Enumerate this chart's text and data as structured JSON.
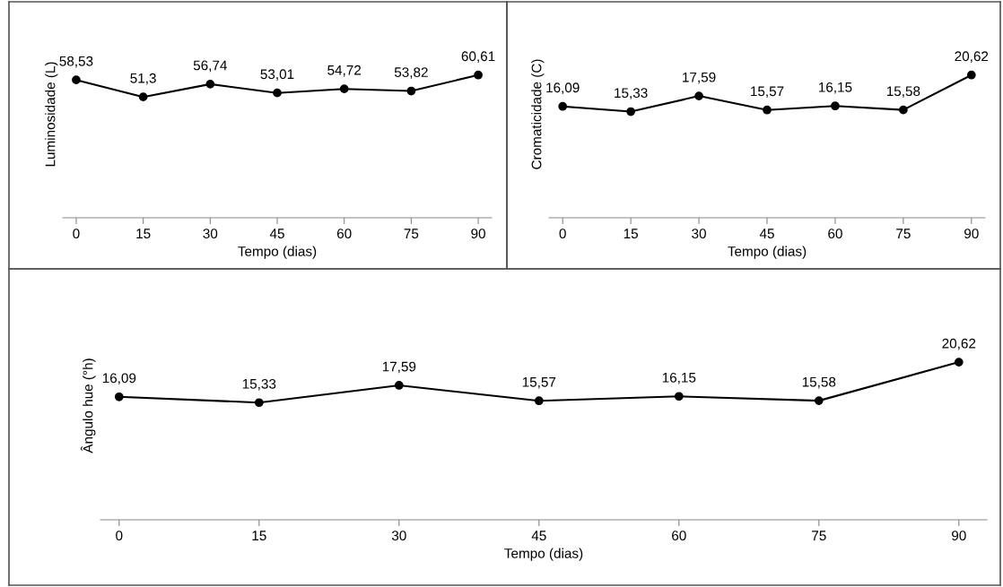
{
  "chart_data": [
    {
      "type": "line",
      "xlabel": "Tempo (dias)",
      "ylabel": "Luminosidade (L)",
      "x": [
        0,
        15,
        30,
        45,
        60,
        75,
        90
      ],
      "xlim": [
        -3,
        93
      ],
      "xticks": [
        0,
        15,
        30,
        45,
        60,
        75,
        90
      ],
      "tick_labels": "x",
      "data_labels": true,
      "marker": "circle",
      "line_style": "solid",
      "series": [
        {
          "color": "#000000",
          "values": [
            58.53,
            51.3,
            56.74,
            53.01,
            54.72,
            53.82,
            60.61
          ],
          "value_labels": [
            "58,53",
            "51,3",
            "56,74",
            "53,01",
            "54,72",
            "53,82",
            "60,61"
          ]
        }
      ]
    },
    {
      "type": "line",
      "xlabel": "Tempo (dias)",
      "ylabel": "Cromaticidade (C)",
      "x": [
        0,
        15,
        30,
        45,
        60,
        75,
        90
      ],
      "xlim": [
        -3,
        93
      ],
      "xticks": [
        0,
        15,
        30,
        45,
        60,
        75,
        90
      ],
      "tick_labels": "x",
      "data_labels": true,
      "marker": "circle",
      "line_style": "solid",
      "series": [
        {
          "color": "#000000",
          "values": [
            16.09,
            15.33,
            17.59,
            15.57,
            16.15,
            15.58,
            20.62
          ],
          "value_labels": [
            "16,09",
            "15,33",
            "17,59",
            "15,57",
            "16,15",
            "15,58",
            "20,62"
          ]
        }
      ]
    },
    {
      "type": "line",
      "xlabel": "Tempo (dias)",
      "ylabel": "Ângulo hue (°h)",
      "x": [
        0,
        15,
        30,
        45,
        60,
        75,
        90
      ],
      "xlim": [
        -2,
        93
      ],
      "xticks": [
        0,
        15,
        30,
        45,
        60,
        75,
        90
      ],
      "tick_labels": "x",
      "data_labels": true,
      "marker": "circle",
      "line_style": "solid",
      "series": [
        {
          "color": "#000000",
          "values": [
            16.09,
            15.33,
            17.59,
            15.57,
            16.15,
            15.58,
            20.62
          ],
          "value_labels": [
            "16,09",
            "15,33",
            "17,59",
            "15,57",
            "16,15",
            "15,58",
            "20,62"
          ]
        }
      ]
    }
  ]
}
